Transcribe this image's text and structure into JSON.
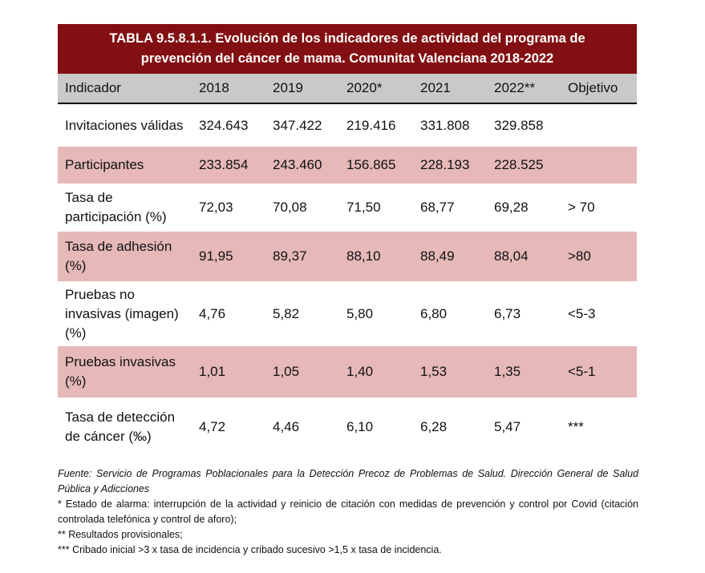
{
  "title_line1": "TABLA 9.5.8.1.1. Evolución de los indicadores de actividad del programa de",
  "title_line2": "prevención del cáncer de mama. Comunitat Valenciana 2018-2022",
  "headers": [
    "Indicador",
    "2018",
    "2019",
    "2020*",
    "2021",
    "2022**",
    "Objetivo"
  ],
  "rows": [
    {
      "cells": [
        "Invitaciones válidas",
        "324.643",
        "347.422",
        "219.416",
        "331.808",
        "329.858",
        ""
      ]
    },
    {
      "cells": [
        "Participantes",
        "233.854",
        "243.460",
        "156.865",
        "228.193",
        "228.525",
        ""
      ]
    },
    {
      "cells": [
        "Tasa de participación (%)",
        "72,03",
        "70,08",
        "71,50",
        "68,77",
        "69,28",
        "> 70"
      ]
    },
    {
      "cells": [
        "Tasa de adhesión (%)",
        "91,95",
        "89,37",
        "88,10",
        "88,49",
        "88,04",
        ">80"
      ]
    },
    {
      "cells": [
        "Pruebas no invasivas (imagen) (%)",
        "4,76",
        "5,82",
        "5,80",
        "6,80",
        "6,73",
        "<5-3"
      ]
    },
    {
      "cells": [
        "Pruebas invasivas (%)",
        "1,01",
        "1,05",
        "1,40",
        "1,53",
        "1,35",
        "<5-1"
      ]
    },
    {
      "cells": [
        "Tasa de detección de cáncer (‰)",
        "4,72",
        "4,46",
        "6,10",
        "6,28",
        "5,47",
        "***"
      ]
    }
  ],
  "notes": {
    "source": "Fuente: Servicio de Programas Poblacionales para la Detección Precoz de Problemas de Salud. Dirección General de Salud Pública y Adicciones",
    "n1": "* Estado de alarma: interrupción de la actividad y reinicio de citación con medidas de prevención y control por Covid (citación controlada telefónica y control de aforo);",
    "n2": "** Resultados provisionales;",
    "n3": "*** Cribado inicial >3 x tasa de incidencia y cribado sucesivo >1,5 x tasa de incidencia."
  }
}
